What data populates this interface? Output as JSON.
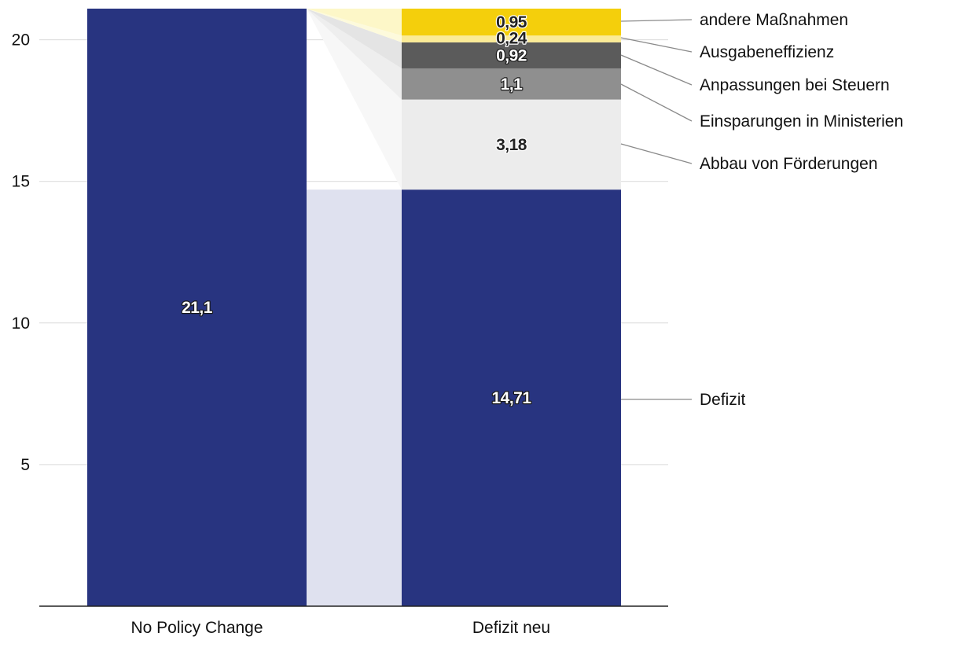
{
  "chart_data": {
    "type": "bar",
    "stacked": true,
    "categories": [
      "No Policy Change",
      "Defizit neu"
    ],
    "ylim": [
      0,
      21.1
    ],
    "yticks": [
      5,
      10,
      15,
      20
    ],
    "grid": true,
    "legend_placement": "right",
    "bars": [
      {
        "category": "No Policy Change",
        "segments": [
          {
            "name": "",
            "value": 21.1,
            "label": "21,1",
            "color": "#283480",
            "label_color": "#ffffff"
          }
        ]
      },
      {
        "category": "Defizit neu",
        "segments": [
          {
            "name": "Defizit",
            "value": 14.71,
            "label": "14,71",
            "color": "#283480",
            "label_color": "#ffffff"
          },
          {
            "name": "Abbau von Förderungen",
            "value": 3.18,
            "label": "3,18",
            "color": "#ececec",
            "label_color": "#222222"
          },
          {
            "name": "Einsparungen in Ministerien",
            "value": 1.1,
            "label": "1,1",
            "color": "#8f8f8f",
            "label_color": "#ffffff"
          },
          {
            "name": "Anpassungen bei Steuern",
            "value": 0.92,
            "label": "0,92",
            "color": "#5b5b5b",
            "label_color": "#ffffff"
          },
          {
            "name": "Ausgabeneffizienz",
            "value": 0.24,
            "label": "0,24",
            "color": "#fbeb96",
            "label_color": "#222222"
          },
          {
            "name": "andere Maßnahmen",
            "value": 0.95,
            "label": "0,95",
            "color": "#f4cf0c",
            "label_color": "#222222"
          }
        ]
      }
    ],
    "connector_color": "#dfe1ef"
  }
}
